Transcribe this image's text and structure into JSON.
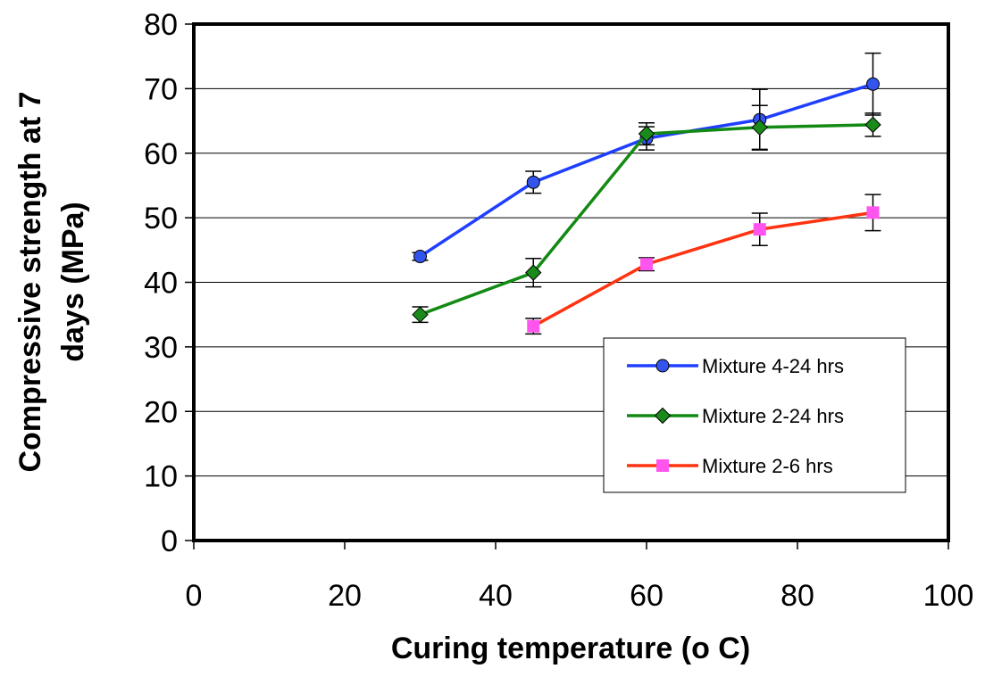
{
  "chart_data": {
    "type": "line",
    "title": "",
    "xlabel": "Curing temperature (o C)",
    "ylabel_lines": [
      "Compressive strength at 7",
      "days (MPa)"
    ],
    "xlim": [
      0,
      100
    ],
    "ylim": [
      0,
      80
    ],
    "xticks": [
      0,
      20,
      40,
      60,
      80,
      100
    ],
    "yticks": [
      0,
      10,
      20,
      30,
      40,
      50,
      60,
      70,
      80
    ],
    "grid": "horizontal",
    "legend_position": "lower-right",
    "series": [
      {
        "name": "Mixture 4-24 hrs",
        "color": "#1f3fff",
        "marker": "circle",
        "marker_fill": "#3355ee",
        "x": [
          30,
          45,
          60,
          75,
          90
        ],
        "y": [
          44,
          55.5,
          62.3,
          65.2,
          70.7
        ],
        "err": [
          0.6,
          1.7,
          1.8,
          4.7,
          4.8
        ]
      },
      {
        "name": "Mixture 2-24 hrs",
        "color": "#138a13",
        "marker": "diamond",
        "marker_fill": "#1a8a1a",
        "x": [
          30,
          45,
          60,
          75,
          90
        ],
        "y": [
          35,
          41.5,
          63,
          64,
          64.4
        ],
        "err": [
          1.2,
          2.2,
          1.7,
          3.4,
          1.8
        ]
      },
      {
        "name": "Mixture 2-6 hrs",
        "color": "#ff3311",
        "marker": "square",
        "marker_fill": "#ff55ee",
        "x": [
          45,
          60,
          75,
          90
        ],
        "y": [
          33.2,
          42.8,
          48.2,
          50.8
        ],
        "err": [
          1.2,
          1.0,
          2.5,
          2.8
        ]
      }
    ]
  }
}
